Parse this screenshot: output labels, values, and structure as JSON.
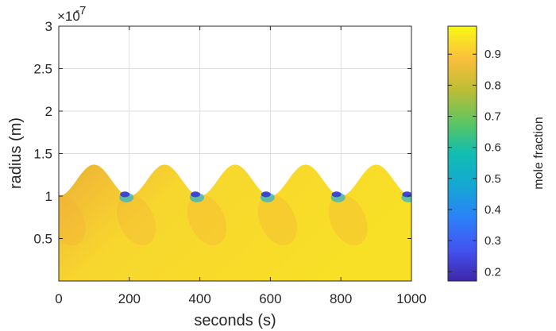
{
  "chart_data": {
    "type": "heatmap",
    "title": "",
    "xlabel": "seconds (s)",
    "ylabel": "radius (m)",
    "y_exponent_label": "×10",
    "y_exponent": "-7",
    "xlim": [
      0,
      1000
    ],
    "ylim": [
      0,
      3e-07
    ],
    "grid": true,
    "x_ticks": [
      0,
      200,
      400,
      600,
      800,
      1000
    ],
    "x_tick_labels": [
      "0",
      "200",
      "400",
      "600",
      "800",
      "1000"
    ],
    "y_ticks": [
      5e-08,
      1e-07,
      1.5e-07,
      2e-07,
      2.5e-07,
      3e-07
    ],
    "y_tick_labels": [
      "0.5",
      "1",
      "1.5",
      "2",
      "2.5",
      "3"
    ],
    "radius_boundary": {
      "description_units": "radius in m; oscillates between min and max with period in s",
      "min": 1e-07,
      "max": 1.37e-07,
      "period": 200,
      "first_peak_time": 100
    },
    "colorbar": {
      "label": "mole fraction",
      "clim": [
        0.17,
        0.99
      ],
      "ticks": [
        0.2,
        0.3,
        0.4,
        0.5,
        0.6,
        0.7,
        0.8,
        0.9
      ],
      "tick_labels": [
        "0.2",
        "0.3",
        "0.4",
        "0.5",
        "0.6",
        "0.7",
        "0.8",
        "0.9"
      ],
      "colormap": "parula"
    }
  }
}
